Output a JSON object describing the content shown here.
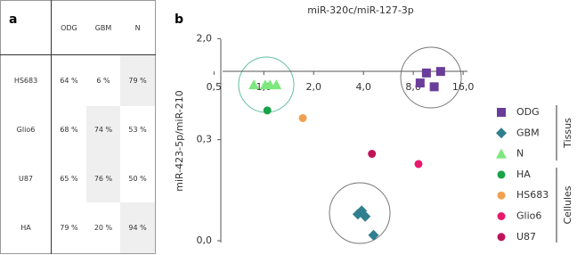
{
  "panel_labels": [
    "a",
    "b"
  ],
  "table": {
    "header": [
      "ODG",
      "GBM",
      "N"
    ],
    "rows": [
      [
        "HS683",
        "64 %",
        "6 %",
        "79 %"
      ],
      [
        "Glio6",
        "68 %",
        "74 %",
        "53 %"
      ],
      [
        "U87",
        "65 %",
        "76 %",
        "50 %"
      ],
      [
        "HA",
        "79 %",
        "20 %",
        "94 %"
      ]
    ]
  },
  "chart_data": {
    "type": "scatter",
    "title": "miR-320c/miR-127-3p",
    "y_label": "miR-423-5p/miR-210",
    "xscale": "log",
    "yscale": "log",
    "xlim": [
      0.44,
      17
    ],
    "ylim": [
      0.035,
      2.3
    ],
    "xticks": [
      {
        "value": 0.5,
        "label": "0,5"
      },
      {
        "value": 1,
        "label": "1,0"
      },
      {
        "value": 2,
        "label": "2,0"
      },
      {
        "value": 4,
        "label": "4,0"
      },
      {
        "value": 8,
        "label": "8,0"
      },
      {
        "value": 16,
        "label": "16,0"
      }
    ],
    "yticks": [
      {
        "value": 2,
        "label": "2,0"
      },
      {
        "value": 0.3,
        "label": "0,3"
      },
      {
        "value": 0.045,
        "label": "0,0"
      }
    ],
    "legend_groups": [
      "Tissus",
      "Cellules"
    ],
    "series": [
      {
        "name": "ODG",
        "color": "#6a3d9a",
        "marker": "square",
        "x": [
          8.8,
          9.6,
          10.7,
          11.7
        ],
        "values": [
          0.87,
          1.05,
          0.81,
          1.08
        ]
      },
      {
        "name": "GBM",
        "color": "#2f7f8f",
        "marker": "diamond",
        "x": [
          3.7,
          3.9,
          4.1,
          4.6
        ],
        "values": [
          0.074,
          0.079,
          0.071,
          0.05
        ]
      },
      {
        "name": "N",
        "color": "#7de87d",
        "marker": "triangle",
        "x": [
          0.87,
          1.02,
          1.09,
          1.19
        ],
        "values": [
          0.84,
          0.84,
          0.84,
          0.84
        ]
      },
      {
        "name": "HA",
        "color": "#1aa34a",
        "marker": "circle",
        "x": [
          1.05
        ],
        "values": [
          0.52
        ]
      },
      {
        "name": "HS683",
        "color": "#f0a050",
        "marker": "circle",
        "x": [
          1.72
        ],
        "values": [
          0.45
        ]
      },
      {
        "name": "Glio6",
        "color": "#e8186d",
        "marker": "circle",
        "x": [
          8.6
        ],
        "values": [
          0.19
        ]
      },
      {
        "name": "U87",
        "color": "#c0145a",
        "marker": "circle",
        "x": [
          4.5
        ],
        "values": [
          0.23
        ]
      }
    ]
  }
}
